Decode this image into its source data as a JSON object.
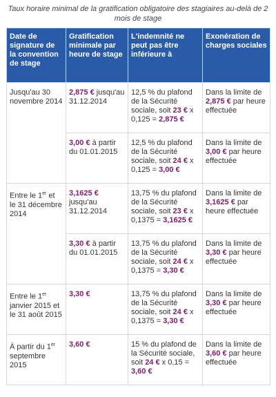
{
  "caption": "Taux horaire minimal de la gratification obligatoire des stagiaires au-delà de 2 mois de stage",
  "table": {
    "headers": [
      "Date de signature de la convention de stage",
      "Gratification minimale par heure de stage",
      "L'indemnité ne peut pas être inférieure à",
      "Exonération de charges sociales"
    ],
    "groups": [
      {
        "period": [
          "Jusqu'au 30 novembre 2014"
        ],
        "rows": [
          [
            [
              {
                "s": "2,875 €"
              },
              " jusqu'au 31.12.2014"
            ],
            [
              "12,5 % du plafond de la Sécurité sociale, soit ",
              {
                "s": "23 €"
              },
              " x 0,125 = ",
              {
                "s": "2,875 €"
              }
            ],
            [
              "Dans la limite de ",
              {
                "s": "2,875 €"
              },
              " par heure effectuée"
            ]
          ],
          [
            [
              {
                "s": "3,00 €"
              },
              " à partir du 01.01.2015"
            ],
            [
              "12,5 % du plafond de la Sécurité sociale, soit ",
              {
                "s": "24 €"
              },
              " x 0,125 = ",
              {
                "s": "3,00 €"
              }
            ],
            [
              "Dans la limite de ",
              {
                "s": "3,00 €"
              },
              " par heure effectuée"
            ]
          ]
        ]
      },
      {
        "period": [
          "Entre le 1",
          {
            "sup": "er"
          },
          " et le 31 décembre 2014"
        ],
        "rows": [
          [
            [
              {
                "s": "3,1625 €"
              },
              " jusqu'au 31.12.2014"
            ],
            [
              "13,75 % du plafond de la Sécurité sociale, soit ",
              {
                "s": "23 €"
              },
              " x 0,1375 = ",
              {
                "s": "3,1625 €"
              }
            ],
            [
              "Dans la limite de ",
              {
                "s": "3,1625 €"
              },
              " par heure effectuée"
            ]
          ],
          [
            [
              {
                "s": "3,30 €"
              },
              " à partir du 01.01.2015"
            ],
            [
              "13,75 % du plafond de la Sécurité sociale, soit ",
              {
                "s": "24 €"
              },
              " x 0,1375 = ",
              {
                "s": "3,30 €"
              }
            ],
            [
              "Dans la limite de ",
              {
                "s": "3,30 €"
              },
              " par heure effectuée"
            ]
          ]
        ]
      },
      {
        "period": [
          "Entre le 1",
          {
            "sup": "er"
          },
          " janvier 2015 et le 31 août 2015"
        ],
        "rows": [
          [
            [
              {
                "s": "3,30 €"
              }
            ],
            [
              "13,75 % du plafond de la Sécurité sociale, soit ",
              {
                "s": "24 €"
              },
              " x 0,1375 = ",
              {
                "s": "3,30 €"
              }
            ],
            [
              "Dans la limite de ",
              {
                "s": "3,30 €"
              },
              " par heure effectuée"
            ]
          ]
        ]
      },
      {
        "period": [
          "À partir du 1",
          {
            "sup": "er"
          },
          " septembre 2015"
        ],
        "rows": [
          [
            [
              {
                "s": "3,60 €"
              }
            ],
            [
              "15 % du plafond de la Sécurité sociale, soit ",
              {
                "s": "24 €"
              },
              " x 0,15 = ",
              {
                "s": "3,60 €"
              }
            ],
            [
              "Dans la limite de ",
              {
                "s": "3,60 €"
              },
              " par heure effectuée"
            ]
          ]
        ]
      }
    ]
  }
}
